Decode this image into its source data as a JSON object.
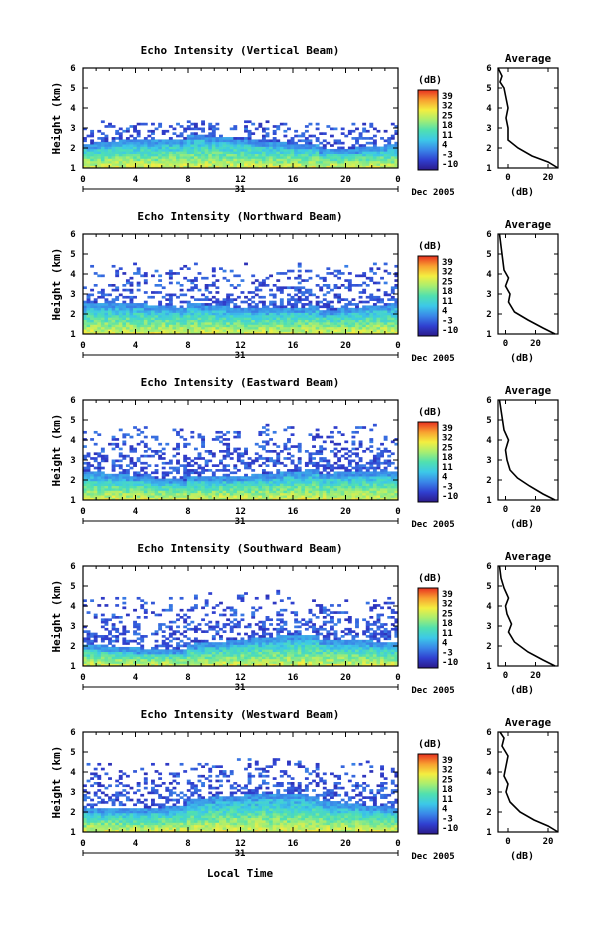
{
  "figure": {
    "x_axis_label": "Local Time",
    "date_label": "Dec 2005",
    "day_label": "31",
    "y_axis_label": "Height (km)",
    "colorbar_unit": "(dB)",
    "profile_title": "Average",
    "profile_xlabel": "(dB)"
  },
  "colorbar": {
    "ticks": [
      "39",
      "32",
      "25",
      "18",
      "11",
      "4",
      "-3",
      "-10"
    ],
    "stops": [
      "#2b1a8a",
      "#3040d0",
      "#3a86e8",
      "#3cc8e8",
      "#50e0b0",
      "#a8ee70",
      "#f4ee40",
      "#f8a030",
      "#e83020"
    ]
  },
  "chart_data": [
    {
      "type": "heatmap",
      "title": "Echo Intensity (Vertical Beam)",
      "x_ticks": [
        "0",
        "4",
        "8",
        "12",
        "16",
        "20",
        "0"
      ],
      "y_ticks": [
        "1",
        "2",
        "3",
        "4",
        "5",
        "6"
      ],
      "xlim": [
        0,
        24
      ],
      "ylim": [
        1,
        6
      ],
      "base_top_km": 2.2,
      "sparse_top_km": 3.3,
      "profile": {
        "x_ticks": [
          "0",
          "20"
        ],
        "xlim": [
          -5,
          25
        ],
        "points": [
          [
            25,
            1.0
          ],
          [
            20,
            1.3
          ],
          [
            12,
            1.6
          ],
          [
            5,
            2.0
          ],
          [
            0,
            2.4
          ],
          [
            0,
            3.0
          ],
          [
            -1,
            3.5
          ],
          [
            0,
            4.0
          ],
          [
            -1,
            4.5
          ],
          [
            -2,
            5.0
          ],
          [
            -4,
            5.3
          ],
          [
            -3,
            5.6
          ],
          [
            -5,
            6.0
          ]
        ]
      }
    },
    {
      "type": "heatmap",
      "title": "Echo Intensity (Northward Beam)",
      "x_ticks": [
        "0",
        "4",
        "8",
        "12",
        "16",
        "20",
        "0"
      ],
      "y_ticks": [
        "1",
        "2",
        "3",
        "4",
        "5",
        "6"
      ],
      "xlim": [
        0,
        24
      ],
      "ylim": [
        1,
        6
      ],
      "base_top_km": 2.3,
      "sparse_top_km": 4.5,
      "profile": {
        "x_ticks": [
          "0",
          "20"
        ],
        "xlim": [
          -5,
          35
        ],
        "points": [
          [
            33,
            1.0
          ],
          [
            25,
            1.3
          ],
          [
            15,
            1.7
          ],
          [
            6,
            2.1
          ],
          [
            2,
            2.6
          ],
          [
            3,
            3.0
          ],
          [
            0,
            3.4
          ],
          [
            2,
            3.8
          ],
          [
            -1,
            4.2
          ],
          [
            -2,
            4.8
          ],
          [
            -3,
            5.4
          ],
          [
            -4,
            6.0
          ]
        ]
      }
    },
    {
      "type": "heatmap",
      "title": "Echo Intensity (Eastward Beam)",
      "x_ticks": [
        "0",
        "4",
        "8",
        "12",
        "16",
        "20",
        "0"
      ],
      "y_ticks": [
        "1",
        "2",
        "3",
        "4",
        "5",
        "6"
      ],
      "xlim": [
        0,
        24
      ],
      "ylim": [
        1,
        6
      ],
      "base_top_km": 2.2,
      "sparse_top_km": 4.7,
      "profile": {
        "x_ticks": [
          "0",
          "20"
        ],
        "xlim": [
          -5,
          35
        ],
        "points": [
          [
            33,
            1.0
          ],
          [
            25,
            1.3
          ],
          [
            16,
            1.7
          ],
          [
            8,
            2.1
          ],
          [
            3,
            2.5
          ],
          [
            1,
            3.0
          ],
          [
            0,
            3.5
          ],
          [
            2,
            4.0
          ],
          [
            -1,
            4.5
          ],
          [
            -2,
            5.0
          ],
          [
            -3,
            5.5
          ],
          [
            -4,
            6.0
          ]
        ]
      }
    },
    {
      "type": "heatmap",
      "title": "Echo Intensity (Southward Beam)",
      "x_ticks": [
        "0",
        "4",
        "8",
        "12",
        "16",
        "20",
        "0"
      ],
      "y_ticks": [
        "1",
        "2",
        "3",
        "4",
        "5",
        "6"
      ],
      "xlim": [
        0,
        24
      ],
      "ylim": [
        1,
        6
      ],
      "base_top_km": 2.1,
      "sparse_top_km": 4.6,
      "profile": {
        "x_ticks": [
          "0",
          "20"
        ],
        "xlim": [
          -5,
          35
        ],
        "points": [
          [
            33,
            1.0
          ],
          [
            25,
            1.3
          ],
          [
            15,
            1.7
          ],
          [
            6,
            2.2
          ],
          [
            2,
            2.7
          ],
          [
            4,
            3.1
          ],
          [
            1,
            3.6
          ],
          [
            0,
            4.0
          ],
          [
            2,
            4.4
          ],
          [
            -1,
            4.9
          ],
          [
            -3,
            5.4
          ],
          [
            -4,
            6.0
          ]
        ]
      }
    },
    {
      "type": "heatmap",
      "title": "Echo Intensity (Westward Beam)",
      "x_ticks": [
        "0",
        "4",
        "8",
        "12",
        "16",
        "20",
        "0"
      ],
      "y_ticks": [
        "1",
        "2",
        "3",
        "4",
        "5",
        "6"
      ],
      "xlim": [
        0,
        24
      ],
      "ylim": [
        1,
        6
      ],
      "base_top_km": 2.4,
      "sparse_top_km": 4.6,
      "profile": {
        "x_ticks": [
          "0",
          "20"
        ],
        "xlim": [
          -5,
          25
        ],
        "points": [
          [
            25,
            1.0
          ],
          [
            20,
            1.3
          ],
          [
            13,
            1.6
          ],
          [
            6,
            2.0
          ],
          [
            1,
            2.5
          ],
          [
            -1,
            3.0
          ],
          [
            0,
            3.4
          ],
          [
            -2,
            3.8
          ],
          [
            -1,
            4.3
          ],
          [
            0,
            4.8
          ],
          [
            -3,
            5.3
          ],
          [
            -2,
            5.7
          ],
          [
            -4,
            6.0
          ]
        ]
      }
    }
  ]
}
